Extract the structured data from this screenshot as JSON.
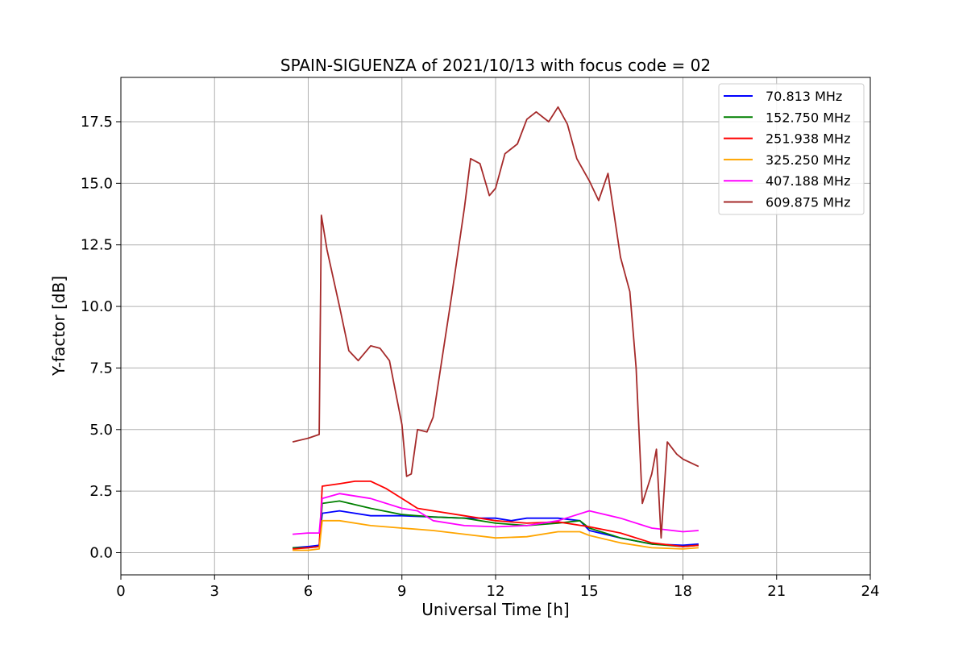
{
  "chart_data": {
    "type": "line",
    "title": "SPAIN-SIGUENZA of 2021/10/13 with focus code = 02",
    "xlabel": "Universal Time [h]",
    "ylabel": "Y-factor [dB]",
    "xlim": [
      0,
      24
    ],
    "ylim": [
      -0.9,
      19.3
    ],
    "xticks": [
      0,
      3,
      6,
      9,
      12,
      15,
      18,
      21,
      24
    ],
    "yticks": [
      0.0,
      2.5,
      5.0,
      7.5,
      10.0,
      12.5,
      15.0,
      17.5
    ],
    "ytick_labels": [
      "0.0",
      "2.5",
      "5.0",
      "7.5",
      "10.0",
      "12.5",
      "15.0",
      "17.5"
    ],
    "grid": true,
    "legend_position": "top-right",
    "series": [
      {
        "name": " 70.813 MHz",
        "color": "#0000ff",
        "points": [
          [
            5.5,
            0.2
          ],
          [
            6.0,
            0.25
          ],
          [
            6.35,
            0.3
          ],
          [
            6.45,
            1.6
          ],
          [
            7.0,
            1.7
          ],
          [
            8.0,
            1.5
          ],
          [
            9.0,
            1.5
          ],
          [
            10.0,
            1.45
          ],
          [
            11.0,
            1.4
          ],
          [
            12.0,
            1.4
          ],
          [
            12.5,
            1.3
          ],
          [
            13.0,
            1.4
          ],
          [
            14.0,
            1.4
          ],
          [
            14.7,
            1.3
          ],
          [
            15.0,
            0.9
          ],
          [
            16.0,
            0.6
          ],
          [
            17.0,
            0.35
          ],
          [
            18.0,
            0.3
          ],
          [
            18.5,
            0.35
          ]
        ]
      },
      {
        "name": "152.750 MHz",
        "color": "#008000",
        "points": [
          [
            5.5,
            0.2
          ],
          [
            6.0,
            0.2
          ],
          [
            6.35,
            0.25
          ],
          [
            6.45,
            2.0
          ],
          [
            7.0,
            2.1
          ],
          [
            8.0,
            1.8
          ],
          [
            9.0,
            1.55
          ],
          [
            10.0,
            1.45
          ],
          [
            11.0,
            1.4
          ],
          [
            12.0,
            1.2
          ],
          [
            13.0,
            1.1
          ],
          [
            14.0,
            1.2
          ],
          [
            14.7,
            1.3
          ],
          [
            15.0,
            1.0
          ],
          [
            16.0,
            0.6
          ],
          [
            17.0,
            0.35
          ],
          [
            18.0,
            0.25
          ],
          [
            18.5,
            0.3
          ]
        ]
      },
      {
        "name": "251.938 MHz",
        "color": "#ff0000",
        "points": [
          [
            5.5,
            0.15
          ],
          [
            6.0,
            0.2
          ],
          [
            6.35,
            0.25
          ],
          [
            6.45,
            2.7
          ],
          [
            7.0,
            2.8
          ],
          [
            7.5,
            2.9
          ],
          [
            8.0,
            2.9
          ],
          [
            8.5,
            2.6
          ],
          [
            9.0,
            2.2
          ],
          [
            9.5,
            1.8
          ],
          [
            10.0,
            1.7
          ],
          [
            11.0,
            1.5
          ],
          [
            12.0,
            1.3
          ],
          [
            13.0,
            1.2
          ],
          [
            14.0,
            1.25
          ],
          [
            15.0,
            1.05
          ],
          [
            16.0,
            0.8
          ],
          [
            17.0,
            0.4
          ],
          [
            18.0,
            0.25
          ],
          [
            18.5,
            0.3
          ]
        ]
      },
      {
        "name": "325.250 MHz",
        "color": "#ffa500",
        "points": [
          [
            5.5,
            0.1
          ],
          [
            6.0,
            0.1
          ],
          [
            6.35,
            0.15
          ],
          [
            6.45,
            1.3
          ],
          [
            7.0,
            1.3
          ],
          [
            8.0,
            1.1
          ],
          [
            9.0,
            1.0
          ],
          [
            10.0,
            0.9
          ],
          [
            11.0,
            0.75
          ],
          [
            12.0,
            0.6
          ],
          [
            13.0,
            0.65
          ],
          [
            14.0,
            0.85
          ],
          [
            14.7,
            0.85
          ],
          [
            15.0,
            0.7
          ],
          [
            16.0,
            0.4
          ],
          [
            17.0,
            0.2
          ],
          [
            18.0,
            0.15
          ],
          [
            18.5,
            0.2
          ]
        ]
      },
      {
        "name": "407.188 MHz",
        "color": "#ff00ff",
        "points": [
          [
            5.5,
            0.75
          ],
          [
            6.0,
            0.8
          ],
          [
            6.35,
            0.8
          ],
          [
            6.45,
            2.2
          ],
          [
            7.0,
            2.4
          ],
          [
            8.0,
            2.2
          ],
          [
            9.0,
            1.8
          ],
          [
            9.5,
            1.7
          ],
          [
            10.0,
            1.3
          ],
          [
            11.0,
            1.1
          ],
          [
            12.0,
            1.05
          ],
          [
            13.0,
            1.1
          ],
          [
            14.0,
            1.3
          ],
          [
            14.5,
            1.5
          ],
          [
            15.0,
            1.7
          ],
          [
            16.0,
            1.4
          ],
          [
            17.0,
            1.0
          ],
          [
            18.0,
            0.85
          ],
          [
            18.5,
            0.9
          ]
        ]
      },
      {
        "name": "609.875 MHz",
        "color": "#a52a2a",
        "points": [
          [
            5.5,
            4.5
          ],
          [
            6.0,
            4.65
          ],
          [
            6.35,
            4.8
          ],
          [
            6.42,
            13.7
          ],
          [
            6.6,
            12.3
          ],
          [
            7.0,
            10.0
          ],
          [
            7.3,
            8.2
          ],
          [
            7.6,
            7.8
          ],
          [
            8.0,
            8.4
          ],
          [
            8.3,
            8.3
          ],
          [
            8.6,
            7.8
          ],
          [
            9.0,
            5.2
          ],
          [
            9.15,
            3.1
          ],
          [
            9.3,
            3.2
          ],
          [
            9.5,
            5.0
          ],
          [
            9.8,
            4.9
          ],
          [
            10.0,
            5.5
          ],
          [
            10.3,
            8.0
          ],
          [
            10.6,
            10.5
          ],
          [
            11.0,
            14.0
          ],
          [
            11.2,
            16.0
          ],
          [
            11.5,
            15.8
          ],
          [
            11.8,
            14.5
          ],
          [
            12.0,
            14.8
          ],
          [
            12.3,
            16.2
          ],
          [
            12.7,
            16.6
          ],
          [
            13.0,
            17.6
          ],
          [
            13.3,
            17.9
          ],
          [
            13.7,
            17.5
          ],
          [
            14.0,
            18.1
          ],
          [
            14.3,
            17.4
          ],
          [
            14.6,
            16.0
          ],
          [
            15.0,
            15.1
          ],
          [
            15.3,
            14.3
          ],
          [
            15.6,
            15.4
          ],
          [
            16.0,
            12.0
          ],
          [
            16.3,
            10.6
          ],
          [
            16.5,
            7.5
          ],
          [
            16.7,
            2.0
          ],
          [
            16.9,
            2.8
          ],
          [
            17.0,
            3.2
          ],
          [
            17.15,
            4.2
          ],
          [
            17.3,
            0.6
          ],
          [
            17.5,
            4.5
          ],
          [
            17.8,
            4.0
          ],
          [
            18.0,
            3.8
          ],
          [
            18.5,
            3.5
          ]
        ]
      }
    ]
  }
}
